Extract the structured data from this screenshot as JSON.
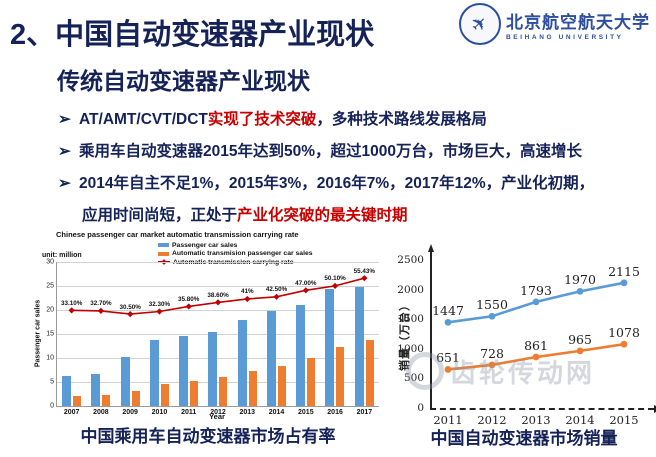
{
  "slide": {
    "title": "2、中国自动变速器产业现状",
    "subtitle": "传统自动变速器产业现状",
    "logo": {
      "name_cn": "北京航空航天大学",
      "name_en": "BEIHANG UNIVERSITY"
    },
    "colors": {
      "navy": "#152257",
      "red": "#c80000",
      "bar_blue": "#5b9bd5",
      "bar_orange": "#ed7d31",
      "line_red": "#c00000"
    }
  },
  "bullets": [
    {
      "marker": "➢",
      "indent": false,
      "segments": [
        {
          "t": "AT/AMT/CVT/DCT",
          "c": "navy"
        },
        {
          "t": "实现了技术突破",
          "c": "red"
        },
        {
          "t": "，多种技术路线发展格局",
          "c": "navy"
        }
      ]
    },
    {
      "marker": "➢",
      "indent": false,
      "segments": [
        {
          "t": "乘用车自动变速器2015年达到50%，超过1000万台，市场巨大，高速增长",
          "c": "navy"
        }
      ]
    },
    {
      "marker": "➢",
      "indent": false,
      "segments": [
        {
          "t": "2014年自主不足1%，2015年3%，2016年7%，2017年12%，产业化初期，",
          "c": "navy"
        }
      ]
    },
    {
      "marker": "",
      "indent": true,
      "segments": [
        {
          "t": "应用时间尚短，正处于",
          "c": "navy"
        },
        {
          "t": "产业化突破的最关键时期",
          "c": "red"
        }
      ]
    }
  ],
  "chart_data": [
    {
      "type": "bar+line",
      "title": "Chinese passenger car market automatic transmission carrying rate",
      "unit_label": "unit: million",
      "ylabel": "Passenger car sales",
      "xlabel": "Year",
      "caption": "中国乘用车自动变速器市场占有率",
      "categories": [
        "2007",
        "2008",
        "2009",
        "2010",
        "2011",
        "2012",
        "2013",
        "2014",
        "2015",
        "2016",
        "2017"
      ],
      "ylim": [
        0,
        30
      ],
      "yticks": [
        0,
        5,
        10,
        15,
        20,
        25,
        30
      ],
      "grid": true,
      "legend_position": "top",
      "legend": [
        "Passenger car sales",
        "Automatic transmision passenger car sales",
        "Automatic transmission carrying rate"
      ],
      "series": [
        {
          "name": "Passenger car sales",
          "kind": "bar",
          "color": "#5b9bd5",
          "values": [
            6.3,
            6.7,
            10.3,
            13.8,
            14.5,
            15.5,
            17.9,
            19.7,
            21.1,
            24.4,
            24.7
          ]
        },
        {
          "name": "Automatic transmision passenger car sales",
          "kind": "bar",
          "color": "#ed7d31",
          "values": [
            2.1,
            2.2,
            3.1,
            4.5,
            5.2,
            6.0,
            7.3,
            8.4,
            9.9,
            12.2,
            13.7
          ]
        },
        {
          "name": "Automatic transmission carrying rate",
          "kind": "line",
          "color": "#c00000",
          "values": [
            33.1,
            32.7,
            30.5,
            32.3,
            35.8,
            38.6,
            41.0,
            42.5,
            47.0,
            50.1,
            55.43
          ],
          "labels": [
            "33.10%",
            "32.70%",
            "30.50%",
            "32.30%",
            "35.80%",
            "38.60%",
            "41%",
            "42.50%",
            "47.00%",
            "50.10%",
            "55.43%"
          ]
        }
      ]
    },
    {
      "type": "line",
      "ylabel": "销量（万台）",
      "caption": "中国自动变速器市场销量",
      "categories": [
        "2011",
        "2012",
        "2013",
        "2014",
        "2015"
      ],
      "ylim": [
        0,
        2500
      ],
      "yticks": [
        0,
        500,
        1000,
        1500,
        2000,
        2500
      ],
      "grid": false,
      "series": [
        {
          "color": "#5b9bd5",
          "values": [
            1447,
            1550,
            1793,
            1970,
            2115
          ]
        },
        {
          "color": "#ed7d31",
          "values": [
            651,
            728,
            861,
            965,
            1078
          ]
        }
      ],
      "watermark": "齿轮传动网"
    }
  ]
}
